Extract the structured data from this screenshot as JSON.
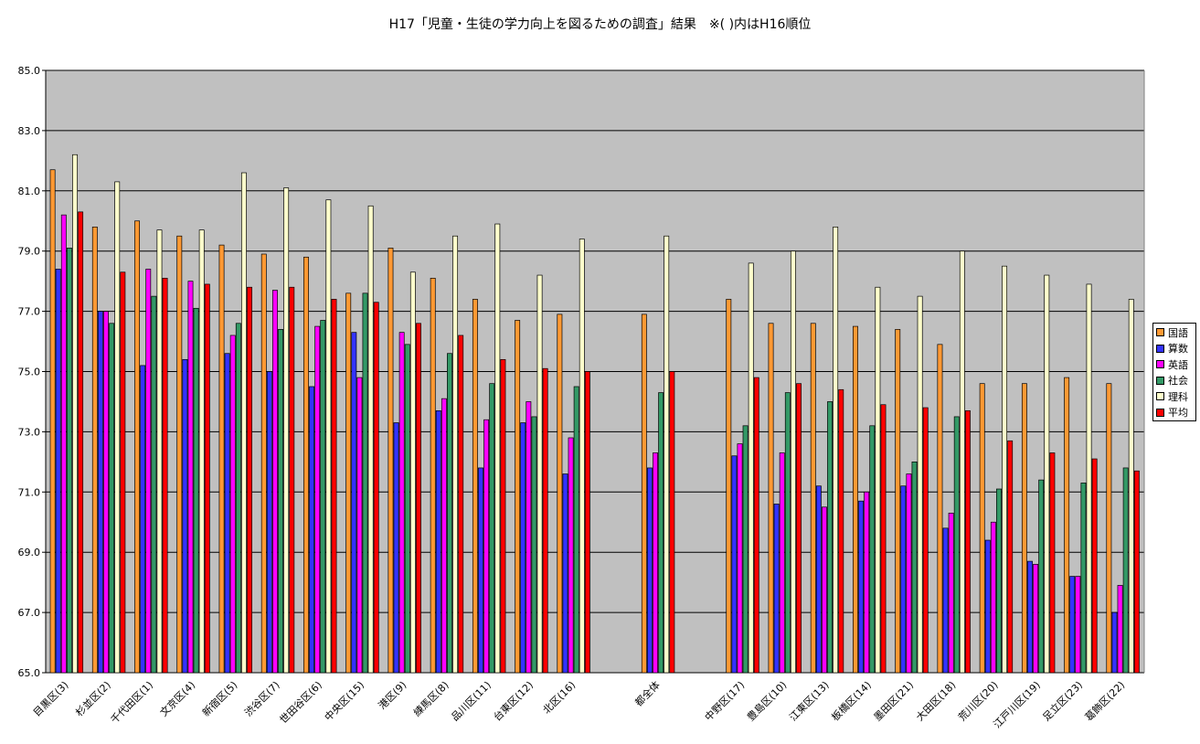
{
  "chart_data": {
    "type": "bar",
    "title": "H17「児童・生徒の学力向上を図るための調査」結果　※(  )内はH16順位",
    "categories": [
      "目黒区(3)",
      "杉並区(2)",
      "千代田区(1)",
      "文京区(4)",
      "新宿区(5)",
      "渋谷区(7)",
      "世田谷区(6)",
      "中央区(15)",
      "港区(9)",
      "練馬区(8)",
      "品川区(11)",
      "台東区(12)",
      "北区(16)",
      "",
      "都全体",
      "",
      "中野区(17)",
      "豊島区(10)",
      "江東区(13)",
      "板橋区(14)",
      "墨田区(21)",
      "大田区(18)",
      "荒川区(20)",
      "江戸川区(19)",
      "足立区(23)",
      "葛飾区(22)"
    ],
    "series": [
      {
        "name": "国語",
        "color": "#ff9933",
        "values": [
          81.7,
          79.8,
          80.0,
          79.5,
          79.2,
          78.9,
          78.8,
          77.6,
          79.1,
          78.1,
          77.4,
          76.7,
          76.9,
          null,
          76.9,
          null,
          77.4,
          76.6,
          76.6,
          76.5,
          76.4,
          75.9,
          74.6,
          74.6,
          74.8,
          74.6
        ]
      },
      {
        "name": "算数",
        "color": "#3333ff",
        "values": [
          78.4,
          77.0,
          75.2,
          75.4,
          75.6,
          75.0,
          74.5,
          76.3,
          73.3,
          73.7,
          71.8,
          73.3,
          71.6,
          null,
          71.8,
          null,
          72.2,
          70.6,
          71.2,
          70.7,
          71.2,
          69.8,
          69.4,
          68.7,
          68.2,
          67.0
        ]
      },
      {
        "name": "英語",
        "color": "#ff00ff",
        "values": [
          80.2,
          77.0,
          78.4,
          78.0,
          76.2,
          77.7,
          76.5,
          74.8,
          76.3,
          74.1,
          73.4,
          74.0,
          72.8,
          null,
          72.3,
          null,
          72.6,
          72.3,
          70.5,
          71.0,
          71.6,
          70.3,
          70.0,
          68.6,
          68.2,
          67.9
        ]
      },
      {
        "name": "社会",
        "color": "#339966",
        "values": [
          79.1,
          76.6,
          77.5,
          77.1,
          76.6,
          76.4,
          76.7,
          77.6,
          75.9,
          75.6,
          74.6,
          73.5,
          74.5,
          null,
          74.3,
          null,
          73.2,
          74.3,
          74.0,
          73.2,
          72.0,
          73.5,
          71.1,
          71.4,
          71.3,
          71.8
        ]
      },
      {
        "name": "理科",
        "color": "#ffffcc",
        "values": [
          82.2,
          81.3,
          79.7,
          79.7,
          81.6,
          81.1,
          80.7,
          80.5,
          78.3,
          79.5,
          79.9,
          78.2,
          79.4,
          null,
          79.5,
          null,
          78.6,
          79.0,
          79.8,
          77.8,
          77.5,
          79.0,
          78.5,
          78.2,
          77.9,
          77.4
        ]
      },
      {
        "name": "平均",
        "color": "#ff0000",
        "values": [
          80.3,
          78.3,
          78.1,
          77.9,
          77.8,
          77.8,
          77.4,
          77.3,
          76.6,
          76.2,
          75.4,
          75.1,
          75.0,
          null,
          75.0,
          null,
          74.8,
          74.6,
          74.4,
          73.9,
          73.8,
          73.7,
          72.7,
          72.3,
          72.1,
          71.7
        ]
      }
    ],
    "ylim": [
      65.0,
      85.0
    ],
    "yticks": [
      "65.0",
      "67.0",
      "69.0",
      "71.0",
      "73.0",
      "75.0",
      "77.0",
      "79.0",
      "81.0",
      "83.0",
      "85.0"
    ],
    "grid": true,
    "legend_position": "right"
  }
}
